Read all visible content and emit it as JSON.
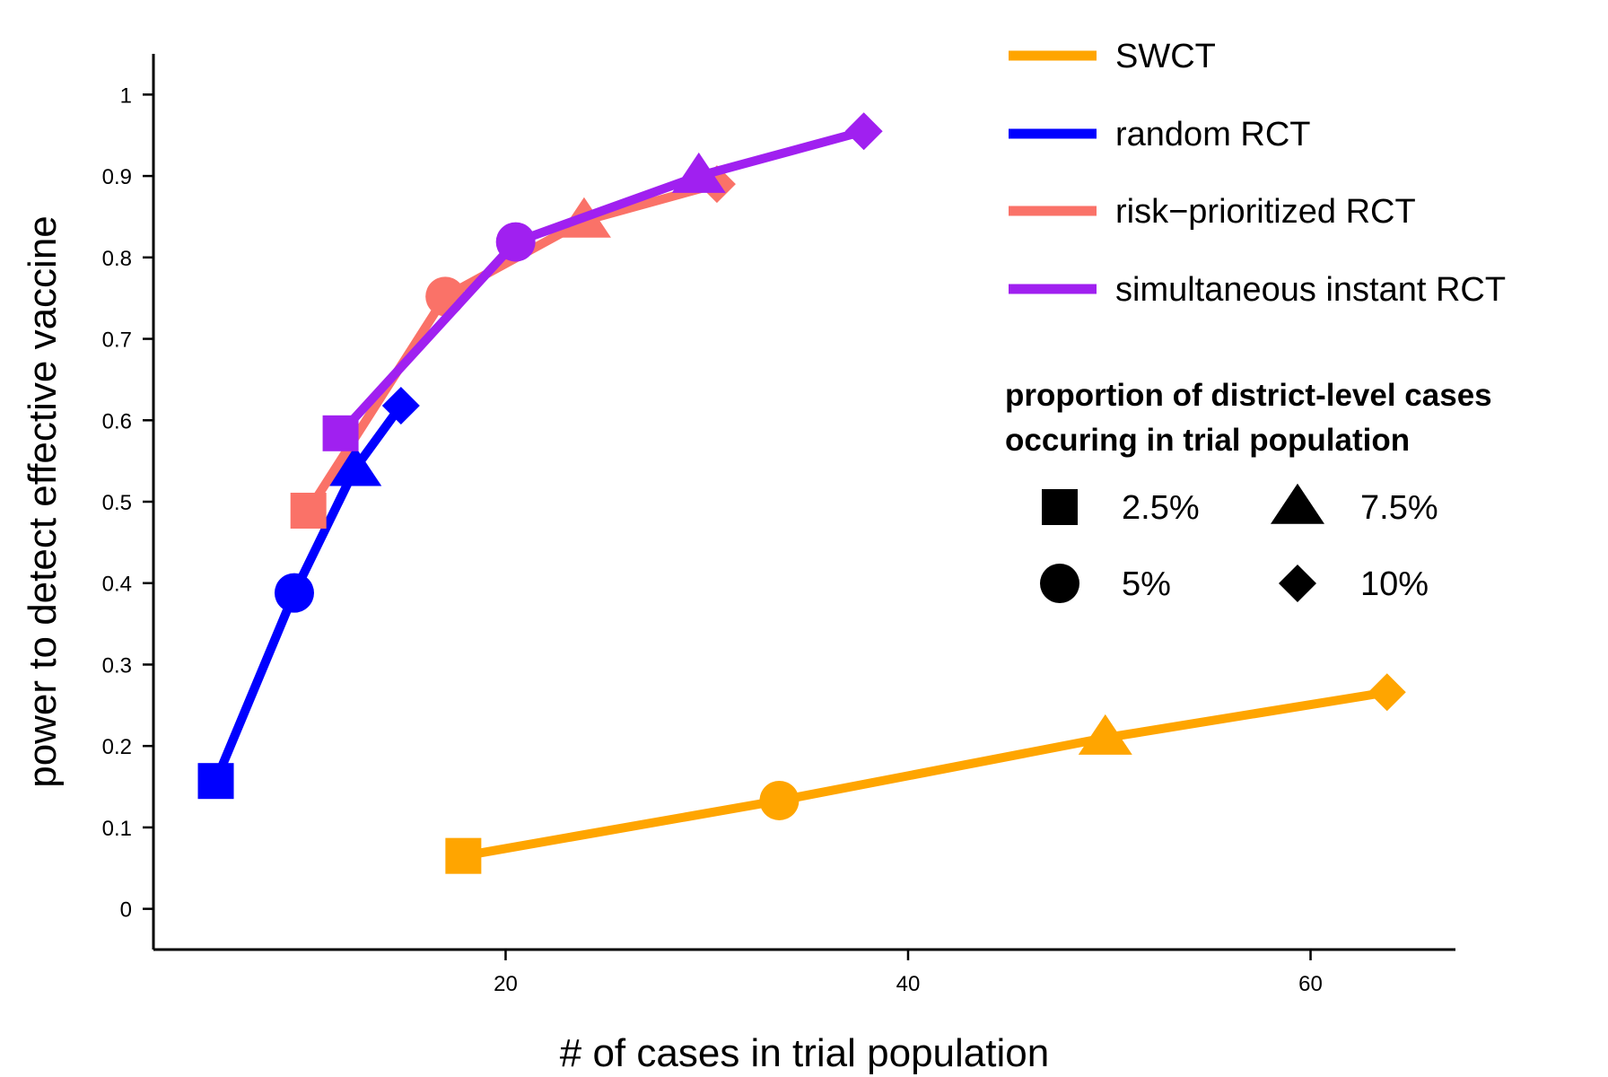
{
  "chart_data": {
    "type": "line",
    "xlabel": "# of cases in trial population",
    "ylabel": "power to detect effective vaccine",
    "xlim": [
      2.5,
      67.2
    ],
    "ylim": [
      -0.05,
      1.05
    ],
    "x_ticks": [
      20,
      40,
      60
    ],
    "y_ticks": [
      0,
      0.1,
      0.2,
      0.3,
      0.4,
      0.5,
      0.6,
      0.7,
      0.8,
      0.9,
      1
    ],
    "grid": false,
    "legend_position": "top-right",
    "series": [
      {
        "name": "SWCT",
        "color": "#FFA500",
        "points": [
          {
            "x": 17.9,
            "y": 0.065,
            "shape": "square"
          },
          {
            "x": 33.6,
            "y": 0.133,
            "shape": "circle"
          },
          {
            "x": 49.8,
            "y": 0.21,
            "shape": "triangle"
          },
          {
            "x": 63.8,
            "y": 0.266,
            "shape": "diamond"
          }
        ]
      },
      {
        "name": "random RCT",
        "color": "#0000FF",
        "points": [
          {
            "x": 5.6,
            "y": 0.157,
            "shape": "square"
          },
          {
            "x": 9.5,
            "y": 0.388,
            "shape": "circle"
          },
          {
            "x": 12.5,
            "y": 0.54,
            "shape": "triangle"
          },
          {
            "x": 14.8,
            "y": 0.618,
            "shape": "diamond"
          }
        ]
      },
      {
        "name": "risk−prioritized RCT",
        "color": "#FA7268",
        "points": [
          {
            "x": 10.2,
            "y": 0.489,
            "shape": "square"
          },
          {
            "x": 17.0,
            "y": 0.752,
            "shape": "circle"
          },
          {
            "x": 23.9,
            "y": 0.845,
            "shape": "triangle"
          },
          {
            "x": 30.5,
            "y": 0.89,
            "shape": "diamond"
          }
        ]
      },
      {
        "name": "simultaneous instant RCT",
        "color": "#A020F0",
        "points": [
          {
            "x": 11.8,
            "y": 0.584,
            "shape": "square"
          },
          {
            "x": 20.5,
            "y": 0.819,
            "shape": "circle"
          },
          {
            "x": 29.6,
            "y": 0.9,
            "shape": "triangle"
          },
          {
            "x": 37.8,
            "y": 0.955,
            "shape": "diamond"
          }
        ]
      }
    ],
    "shape_legend": {
      "title_lines": [
        "proportion of district-level cases",
        "occuring in trial population"
      ],
      "items": [
        {
          "shape": "square",
          "label": "2.5%"
        },
        {
          "shape": "triangle",
          "label": "7.5%"
        },
        {
          "shape": "circle",
          "label": "5%"
        },
        {
          "shape": "diamond",
          "label": "10%"
        }
      ]
    }
  }
}
